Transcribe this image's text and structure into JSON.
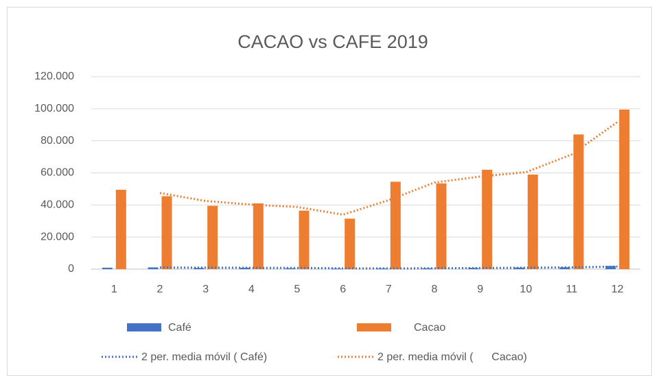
{
  "chart_data": {
    "type": "bar",
    "title": "CACAO vs CAFE 2019",
    "categories": [
      "1",
      "2",
      "3",
      "4",
      "5",
      "6",
      "7",
      "8",
      "9",
      "10",
      "11",
      "12"
    ],
    "series": [
      {
        "name": "Café",
        "color": "#4472c4",
        "values": [
          900,
          1100,
          800,
          900,
          600,
          400,
          500,
          600,
          800,
          1000,
          1200,
          2000
        ]
      },
      {
        "name": "Cacao",
        "color": "#ed7d31",
        "values": [
          49500,
          45500,
          39500,
          41000,
          36500,
          31500,
          54500,
          53500,
          62000,
          59000,
          84000,
          99500
        ]
      }
    ],
    "trendlines": [
      {
        "name": "2 per. media móvil ( Café)",
        "series": 0,
        "period": 2,
        "color": "#4472c4"
      },
      {
        "name": "2 per. media móvil (      Cacao)",
        "series": 1,
        "period": 2,
        "color": "#ed7d31"
      }
    ],
    "ylim": [
      0,
      120000
    ],
    "yticks": [
      0,
      {
        "value": 20000,
        "label": "20.000"
      },
      {
        "value": 40000,
        "label": "40.000"
      },
      {
        "value": 60000,
        "label": "60.000"
      },
      {
        "value": 80000,
        "label": "80.000"
      },
      {
        "value": 100000,
        "label": "100.000"
      },
      {
        "value": 120000,
        "label": "120.000"
      }
    ],
    "grid": true
  }
}
